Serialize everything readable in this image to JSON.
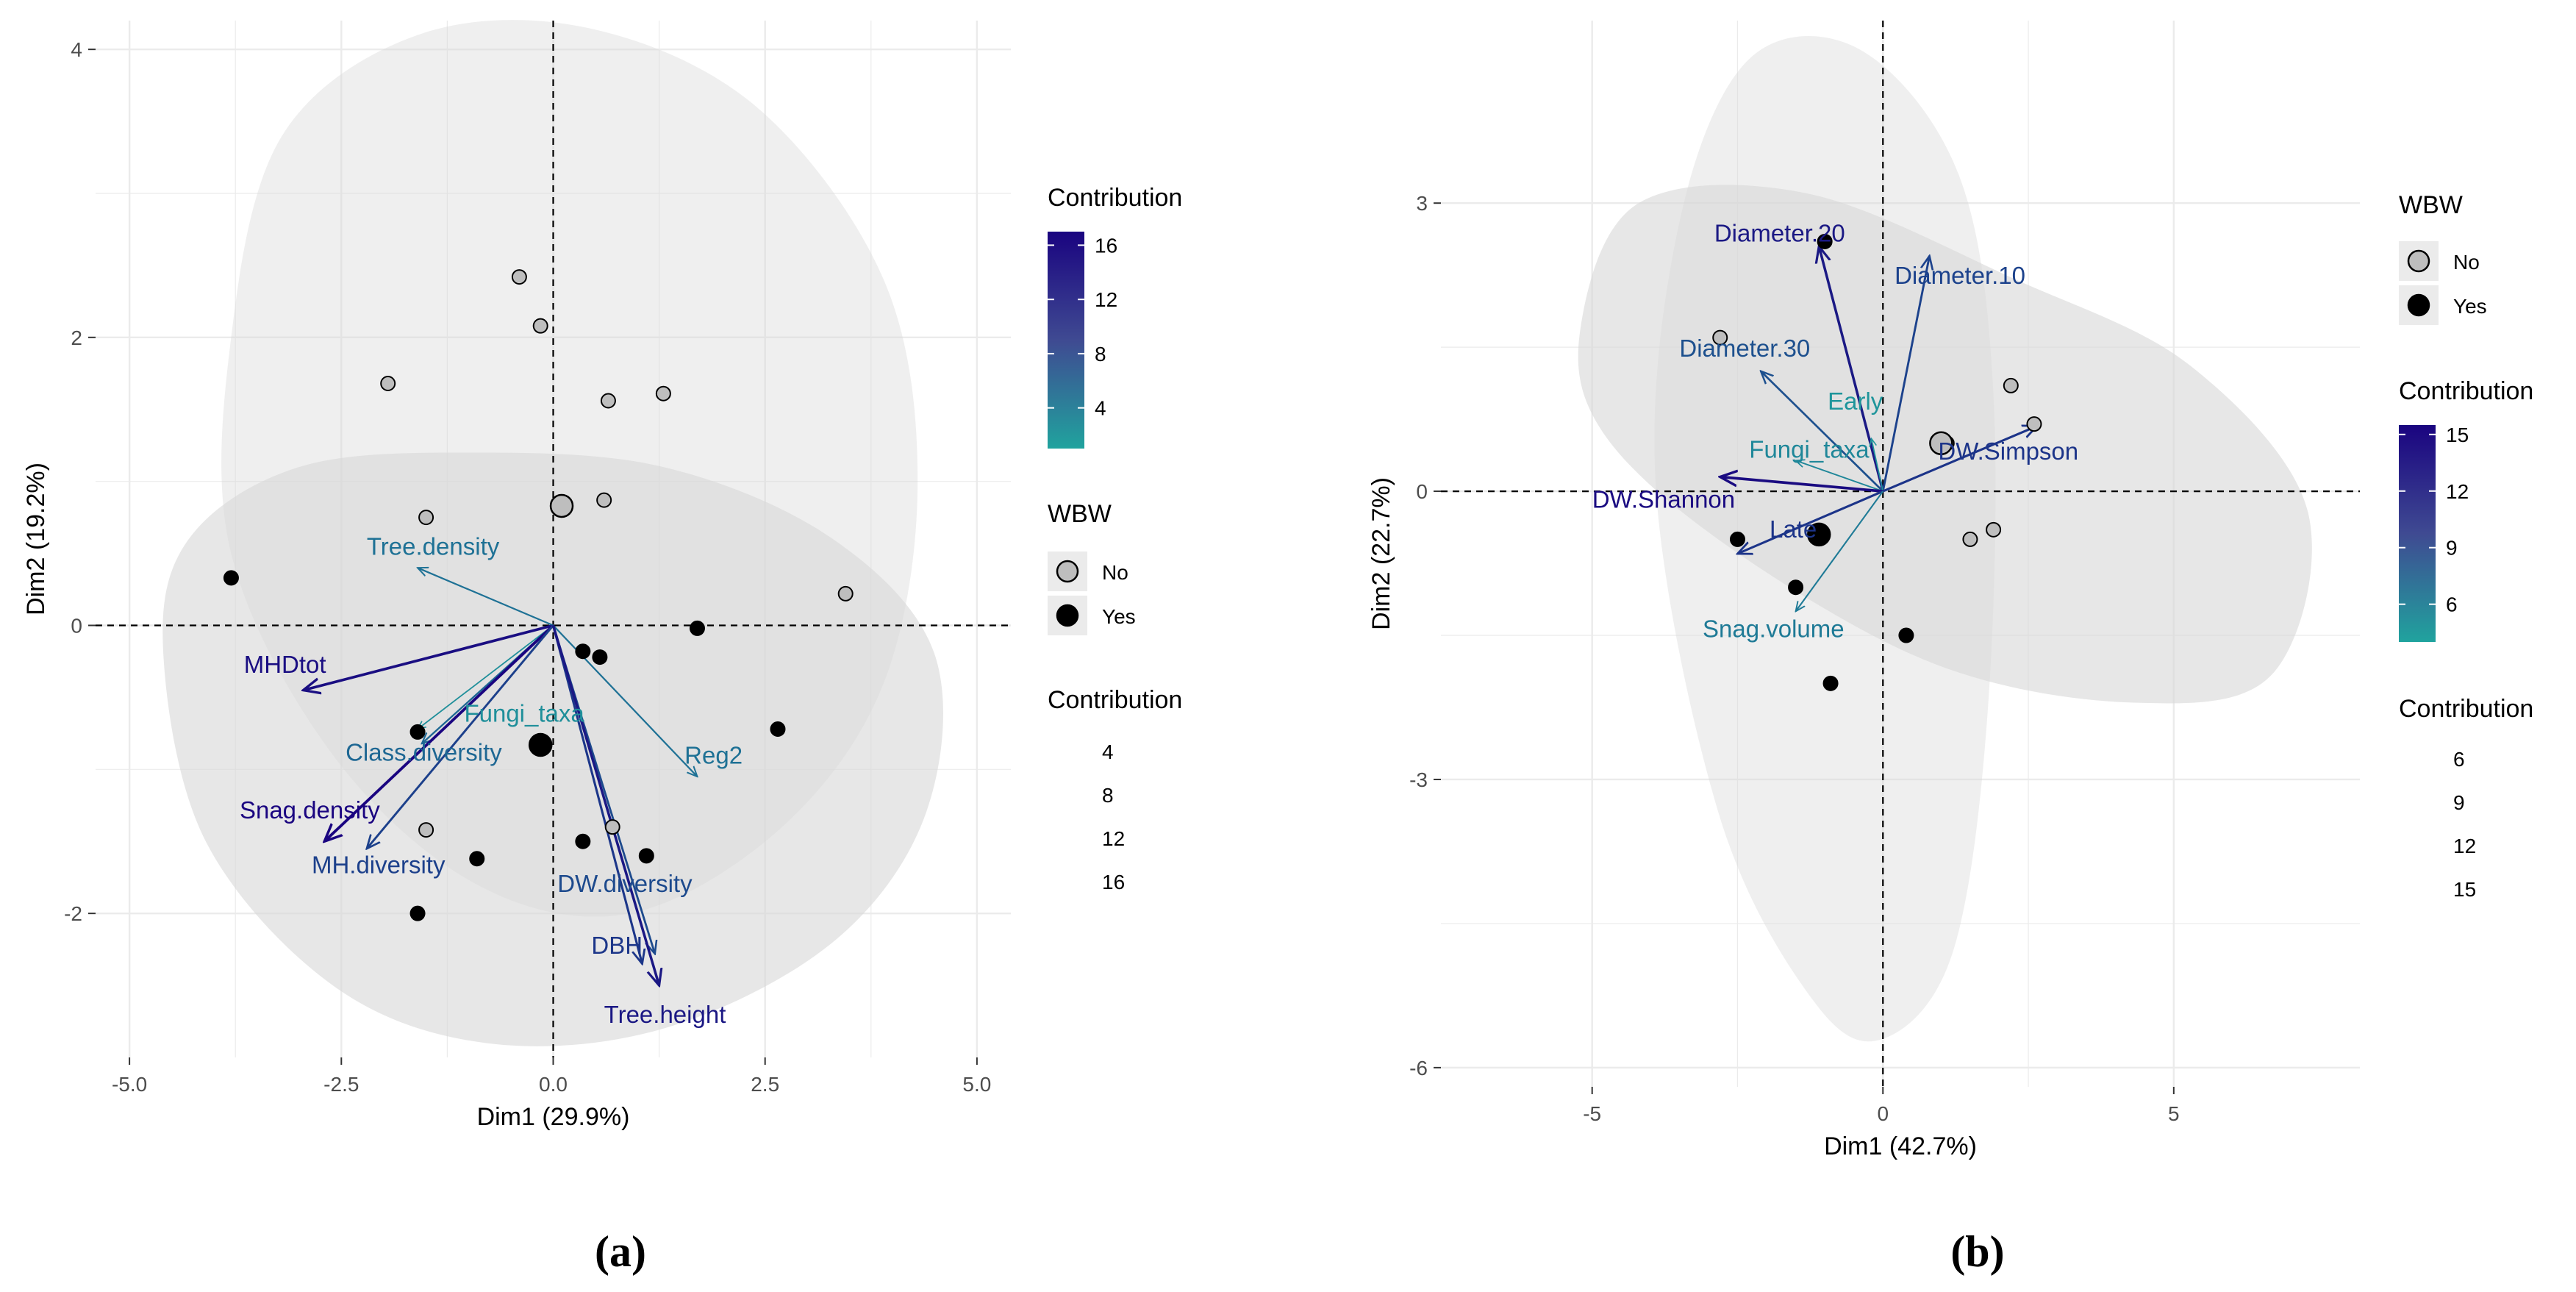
{
  "captions": {
    "a": "(a)",
    "b": "(b)"
  },
  "colors": {
    "gradient_low": "#20A39E",
    "gradient_high": "#1A0480",
    "point_no": "#BEBEBE",
    "point_yes": "#000000",
    "ellipse_fill": "#D9D9D9",
    "grid": "#EBEBEB"
  },
  "chart_data": [
    {
      "id": "a",
      "type": "scatter",
      "subtype": "pca-biplot",
      "xlabel": "Dim1 (29.9%)",
      "ylabel": "Dim2 (19.2%)",
      "xlim": [
        -5.4,
        5.4
      ],
      "ylim": [
        -3.0,
        4.2
      ],
      "xticks": [
        -5.0,
        -2.5,
        0.0,
        2.5,
        5.0
      ],
      "xtick_labels": [
        "-5.0",
        "-2.5",
        "0.0",
        "2.5",
        "5.0"
      ],
      "yticks": [
        -2,
        0,
        2,
        4
      ],
      "ytick_labels": [
        "-2",
        "0",
        "2",
        "4"
      ],
      "grid": true,
      "contribution_range": [
        1,
        17
      ],
      "ellipses": [
        {
          "group": "No",
          "outline": [
            [
              -3.8,
              2.0
            ],
            [
              -3.2,
              3.4
            ],
            [
              -1.6,
              4.1
            ],
            [
              0.4,
              4.15
            ],
            [
              2.4,
              3.6
            ],
            [
              3.9,
              2.4
            ],
            [
              4.3,
              1.0
            ],
            [
              3.9,
              -0.4
            ],
            [
              2.7,
              -1.4
            ],
            [
              0.9,
              -2.0
            ],
            [
              -0.9,
              -1.8
            ],
            [
              -2.6,
              -0.9
            ],
            [
              -3.8,
              0.5
            ]
          ]
        },
        {
          "group": "Yes",
          "outline": [
            [
              -4.6,
              -0.2
            ],
            [
              -4.3,
              0.6
            ],
            [
              -3.0,
              1.1
            ],
            [
              -1.0,
              1.2
            ],
            [
              1.3,
              1.1
            ],
            [
              3.3,
              0.6
            ],
            [
              4.5,
              -0.2
            ],
            [
              4.4,
              -1.3
            ],
            [
              3.3,
              -2.2
            ],
            [
              1.3,
              -2.8
            ],
            [
              -0.8,
              -2.9
            ],
            [
              -2.6,
              -2.5
            ],
            [
              -4.1,
              -1.5
            ]
          ]
        }
      ],
      "points": {
        "No": [
          [
            -0.4,
            2.42
          ],
          [
            -0.15,
            2.08
          ],
          [
            -1.95,
            1.68
          ],
          [
            0.65,
            1.56
          ],
          [
            1.3,
            1.61
          ],
          [
            0.6,
            0.87
          ],
          [
            -1.5,
            0.75
          ],
          [
            3.45,
            0.22
          ],
          [
            -1.5,
            -1.42
          ],
          [
            0.7,
            -1.4
          ]
        ],
        "Yes": [
          [
            -3.8,
            0.33
          ],
          [
            1.7,
            -0.02
          ],
          [
            0.35,
            -0.18
          ],
          [
            0.55,
            -0.22
          ],
          [
            2.65,
            -0.72
          ],
          [
            0.35,
            -1.5
          ],
          [
            -0.9,
            -1.62
          ],
          [
            1.1,
            -1.6
          ],
          [
            -1.6,
            -2.0
          ],
          [
            -1.6,
            -0.74
          ]
        ]
      },
      "centroids": {
        "No": [
          0.1,
          0.83
        ],
        "Yes": [
          -0.15,
          -0.83
        ]
      },
      "variables": [
        {
          "name": "MHDtot",
          "x": -2.95,
          "y": -0.45,
          "contrib": 16,
          "lx": -3.65,
          "ly": -0.33,
          "anchor": "start"
        },
        {
          "name": "Tree.density",
          "x": -1.6,
          "y": 0.4,
          "contrib": 6,
          "lx": -2.2,
          "ly": 0.49,
          "anchor": "start"
        },
        {
          "name": "Fungi_taxa",
          "x": -1.6,
          "y": -0.72,
          "contrib": 3,
          "lx": -1.05,
          "ly": -0.67,
          "anchor": "start"
        },
        {
          "name": "Class.diversity",
          "x": -1.55,
          "y": -0.82,
          "contrib": 7,
          "lx": -2.45,
          "ly": -0.94,
          "anchor": "start"
        },
        {
          "name": "Snag.density",
          "x": -2.7,
          "y": -1.5,
          "contrib": 17,
          "lx": -3.7,
          "ly": -1.34,
          "anchor": "start"
        },
        {
          "name": "MH.diversity",
          "x": -2.2,
          "y": -1.55,
          "contrib": 11,
          "lx": -2.85,
          "ly": -1.72,
          "anchor": "start"
        },
        {
          "name": "Reg2",
          "x": 1.7,
          "y": -1.05,
          "contrib": 6,
          "lx": 1.55,
          "ly": -0.96,
          "anchor": "start"
        },
        {
          "name": "DW.diversity",
          "x": 1.2,
          "y": -2.28,
          "contrib": 10,
          "lx": 0.05,
          "ly": -1.85,
          "anchor": "start"
        },
        {
          "name": "DBH",
          "x": 1.05,
          "y": -2.35,
          "contrib": 12,
          "lx": 0.45,
          "ly": -2.28,
          "anchor": "start"
        },
        {
          "name": "Tree.height",
          "x": 1.25,
          "y": -2.5,
          "contrib": 15,
          "lx": 0.6,
          "ly": -2.76,
          "anchor": "start"
        }
      ],
      "legend": {
        "contribution_color_title": "Contribution",
        "colorbar_ticks": [
          4,
          8,
          12,
          16
        ],
        "colorbar_tick_labels": [
          "4",
          "8",
          "12",
          "16"
        ],
        "group_title": "WBW",
        "groups": [
          "No",
          "Yes"
        ],
        "contribution_size_title": "Contribution",
        "size_entries": [
          "4",
          "8",
          "12",
          "16"
        ],
        "placement": "right"
      }
    },
    {
      "id": "b",
      "type": "scatter",
      "subtype": "pca-biplot",
      "xlabel": "Dim1 (42.7%)",
      "ylabel": "Dim2 (22.7%)",
      "xlim": [
        -7.6,
        8.2
      ],
      "ylim": [
        -6.2,
        4.9
      ],
      "xticks": [
        -5,
        0,
        5
      ],
      "xtick_labels": [
        "-5",
        "0",
        "5"
      ],
      "yticks": [
        -6,
        -3,
        0,
        3
      ],
      "ytick_labels": [
        "-6",
        "-3",
        "0",
        "3"
      ],
      "grid": true,
      "contribution_range": [
        4,
        15.5
      ],
      "ellipses": [
        {
          "group": "No",
          "outline": [
            [
              -2.3,
              4.5
            ],
            [
              -0.4,
              4.6
            ],
            [
              1.3,
              3.3
            ],
            [
              1.9,
              1.0
            ],
            [
              1.8,
              -2.3
            ],
            [
              1.2,
              -4.8
            ],
            [
              0.0,
              -5.7
            ],
            [
              -1.2,
              -5.3
            ],
            [
              -2.8,
              -3.4
            ],
            [
              -3.9,
              0.0
            ],
            [
              -3.5,
              2.8
            ]
          ]
        },
        {
          "group": "Yes",
          "outline": [
            [
              -5.2,
              1.7
            ],
            [
              -4.2,
              3.0
            ],
            [
              -1.3,
              3.1
            ],
            [
              2.3,
              2.2
            ],
            [
              5.3,
              1.3
            ],
            [
              7.3,
              -0.2
            ],
            [
              6.7,
              -1.9
            ],
            [
              4.3,
              -2.2
            ],
            [
              0.9,
              -1.8
            ],
            [
              -2.6,
              -0.6
            ],
            [
              -4.8,
              0.6
            ]
          ]
        }
      ],
      "points": {
        "No": [
          [
            1.1,
            0.5
          ],
          [
            2.6,
            0.7
          ],
          [
            2.2,
            1.1
          ],
          [
            -2.8,
            1.6
          ],
          [
            1.9,
            -0.4
          ],
          [
            1.5,
            -0.5
          ]
        ],
        "Yes": [
          [
            -1.0,
            2.6
          ],
          [
            -2.5,
            -0.5
          ],
          [
            -1.5,
            -1.0
          ],
          [
            0.4,
            -1.5
          ],
          [
            -0.9,
            -2.0
          ]
        ]
      },
      "centroids": {
        "No": [
          1.0,
          0.5
        ],
        "Yes": [
          -1.1,
          -0.45
        ]
      },
      "variables": [
        {
          "name": "Diameter.20",
          "x": -1.1,
          "y": 2.55,
          "contrib": 14,
          "lx": -2.9,
          "ly": 2.6,
          "anchor": "start"
        },
        {
          "name": "Diameter.10",
          "x": 0.8,
          "y": 2.45,
          "contrib": 11,
          "lx": 0.2,
          "ly": 2.16,
          "anchor": "start"
        },
        {
          "name": "Diameter.30",
          "x": -2.1,
          "y": 1.25,
          "contrib": 10,
          "lx": -3.5,
          "ly": 1.4,
          "anchor": "start"
        },
        {
          "name": "Early",
          "x": -0.2,
          "y": 0.55,
          "contrib": 5,
          "lx": -0.95,
          "ly": 0.85,
          "anchor": "start"
        },
        {
          "name": "Fungi_taxa",
          "x": -1.5,
          "y": 0.32,
          "contrib": 6,
          "lx": -2.3,
          "ly": 0.35,
          "anchor": "start"
        },
        {
          "name": "DW.Simpson",
          "x": 2.65,
          "y": 0.68,
          "contrib": 12,
          "lx": 0.95,
          "ly": 0.33,
          "anchor": "start"
        },
        {
          "name": "DW.Shannon",
          "x": -2.8,
          "y": 0.15,
          "contrib": 15,
          "lx": -5.0,
          "ly": -0.17,
          "anchor": "start"
        },
        {
          "name": "Late",
          "x": -2.5,
          "y": -0.65,
          "contrib": 12,
          "lx": -1.95,
          "ly": -0.48,
          "anchor": "start"
        },
        {
          "name": "Snag.volume",
          "x": -1.5,
          "y": -1.25,
          "contrib": 7,
          "lx": -3.1,
          "ly": -1.52,
          "anchor": "start"
        }
      ],
      "legend": {
        "group_title": "WBW",
        "groups": [
          "No",
          "Yes"
        ],
        "contribution_color_title": "Contribution",
        "colorbar_ticks": [
          6,
          9,
          12,
          15
        ],
        "colorbar_tick_labels": [
          "6",
          "9",
          "12",
          "15"
        ],
        "contribution_size_title": "Contribution",
        "size_entries": [
          "6",
          "9",
          "12",
          "15"
        ],
        "placement": "right"
      }
    }
  ]
}
